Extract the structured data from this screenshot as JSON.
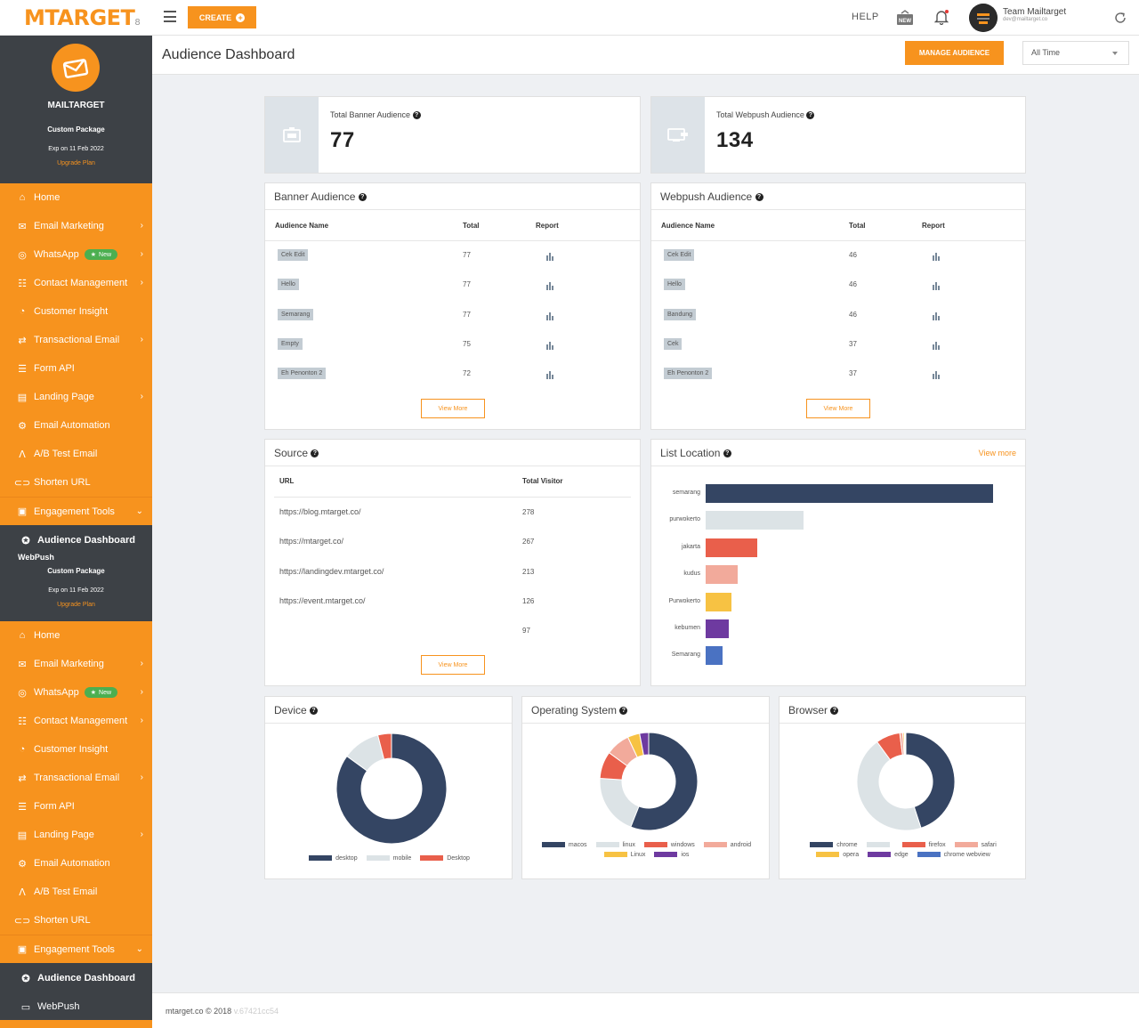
{
  "topbar": {
    "logo": "MTARGET",
    "logo_sub": "8",
    "create_label": "CREATE",
    "help_label": "HELP",
    "new_icon_text": "NEW",
    "user_name": "Team Mailtarget",
    "user_email": "dev@mailtarget.co"
  },
  "sidebar": {
    "brand": "MAILTARGET",
    "package": "Custom Package",
    "expiry": "Exp on 11 Feb 2022",
    "upgrade": "Upgrade Plan",
    "items": [
      {
        "label": "Home",
        "icon": "home-icon",
        "chevron": false
      },
      {
        "label": "Email Marketing",
        "icon": "email-icon",
        "chevron": true
      },
      {
        "label": "WhatsApp",
        "icon": "whatsapp-icon",
        "chevron": true,
        "badge": "New"
      },
      {
        "label": "Contact Management",
        "icon": "contacts-icon",
        "chevron": true
      },
      {
        "label": "Customer Insight",
        "icon": "insight-icon",
        "chevron": false
      },
      {
        "label": "Transactional Email",
        "icon": "transactional-icon",
        "chevron": true
      },
      {
        "label": "Form API",
        "icon": "form-icon",
        "chevron": false
      },
      {
        "label": "Landing Page",
        "icon": "landing-icon",
        "chevron": true
      },
      {
        "label": "Email Automation",
        "icon": "automation-icon",
        "chevron": false
      },
      {
        "label": "A/B Test Email",
        "icon": "ab-test-icon",
        "chevron": false
      },
      {
        "label": "Shorten URL",
        "icon": "link-icon",
        "chevron": false
      },
      {
        "label": "Engagement Tools",
        "icon": "engagement-icon",
        "chevron": true
      }
    ],
    "active_item": "Audience Dashboard",
    "webpush_label": "WebPush",
    "webpush_partial": "WebPush"
  },
  "header": {
    "title": "Audience Dashboard",
    "manage_button": "MANAGE AUDIENCE",
    "time_filter": "All Time"
  },
  "stats": {
    "banner_label": "Total Banner Audience",
    "banner_value": "77",
    "webpush_label": "Total Webpush Audience",
    "webpush_value": "134"
  },
  "banner_audience": {
    "title": "Banner Audience",
    "columns": [
      "Audience Name",
      "Total",
      "Report"
    ],
    "rows": [
      {
        "name": "Cek Edit",
        "total": "77"
      },
      {
        "name": "Hello",
        "total": "77"
      },
      {
        "name": "Semarang",
        "total": "77"
      },
      {
        "name": "Empty",
        "total": "75"
      },
      {
        "name": "Eh Penonton 2",
        "total": "72"
      }
    ],
    "view_more": "View More"
  },
  "webpush_audience": {
    "title": "Webpush Audience",
    "columns": [
      "Audience Name",
      "Total",
      "Report"
    ],
    "rows": [
      {
        "name": "Cek Edit",
        "total": "46"
      },
      {
        "name": "Hello",
        "total": "46"
      },
      {
        "name": "Bandung",
        "total": "46"
      },
      {
        "name": "Cek",
        "total": "37"
      },
      {
        "name": "Eh Penonton 2",
        "total": "37"
      }
    ],
    "view_more": "View More"
  },
  "source": {
    "title": "Source",
    "columns": [
      "URL",
      "Total Visitor"
    ],
    "rows": [
      {
        "url": "https://blog.mtarget.co/",
        "total": "278"
      },
      {
        "url": "https://mtarget.co/",
        "total": "267"
      },
      {
        "url": "https://landingdev.mtarget.co/",
        "total": "213"
      },
      {
        "url": "https://event.mtarget.co/",
        "total": "126"
      },
      {
        "url": "",
        "total": "97"
      }
    ],
    "view_more": "View More"
  },
  "list_location": {
    "title": "List Location",
    "view_more": "View more"
  },
  "device": {
    "title": "Device"
  },
  "os": {
    "title": "Operating System"
  },
  "browser": {
    "title": "Browser"
  },
  "footer": {
    "copyright": "mtarget.co © 2018",
    "version": "v.67421cc54"
  },
  "colors": {
    "accent": "#f7931e",
    "dark": "#3d4146",
    "navy": "#344563"
  },
  "chart_data": [
    {
      "type": "bar",
      "title": "List Location",
      "orientation": "horizontal",
      "categories": [
        "semarang",
        "purwokerto",
        "jakarta",
        "kudus",
        "Purwokerto",
        "kebumen",
        "Semarang"
      ],
      "values": [
        100,
        34,
        18,
        11,
        9,
        8,
        6
      ],
      "colors": [
        "#344563",
        "#dce3e6",
        "#e95f4b",
        "#f2aa9b",
        "#f7c243",
        "#6e3aa0",
        "#4a72c2"
      ]
    },
    {
      "type": "pie",
      "title": "Device",
      "labels": [
        "desktop",
        "mobile",
        "Desktop"
      ],
      "values": [
        85,
        11,
        4
      ],
      "colors": [
        "#344563",
        "#dce3e6",
        "#e95f4b"
      ]
    },
    {
      "type": "pie",
      "title": "Operating System",
      "labels": [
        "macos",
        "linux",
        "windows",
        "android",
        "Linux",
        "ios"
      ],
      "values": [
        56,
        20,
        9,
        8,
        4,
        3
      ],
      "colors": [
        "#344563",
        "#dce3e6",
        "#e95f4b",
        "#f2aa9b",
        "#f7c243",
        "#6e3aa0"
      ]
    },
    {
      "type": "pie",
      "title": "Browser",
      "labels": [
        "chrome",
        "",
        "firefox",
        "safari",
        "opera",
        "edge",
        "chrome webview"
      ],
      "values": [
        45,
        45,
        8,
        1,
        0.5,
        0.3,
        0.2
      ],
      "colors": [
        "#344563",
        "#dce3e6",
        "#e95f4b",
        "#f2aa9b",
        "#f7c243",
        "#6e3aa0",
        "#4a72c2"
      ]
    }
  ]
}
